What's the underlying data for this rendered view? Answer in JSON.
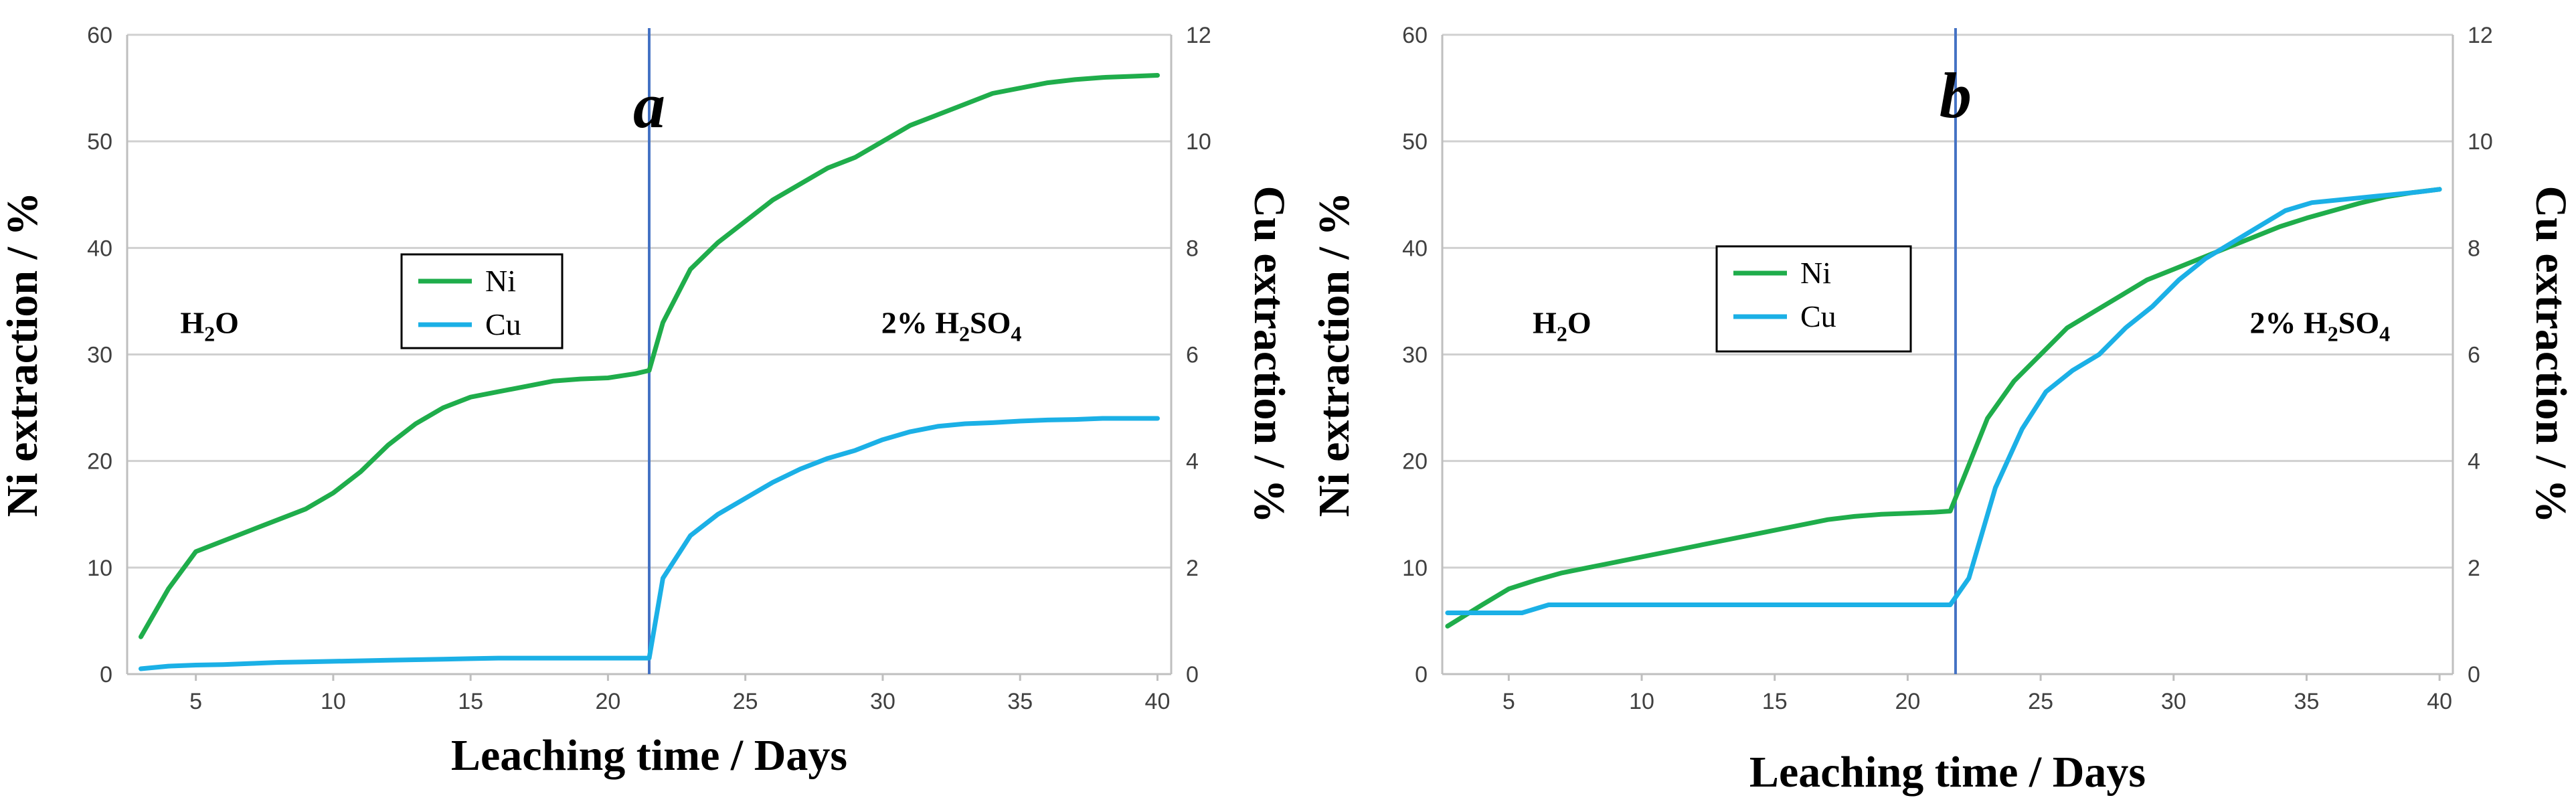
{
  "chart_data": [
    {
      "type": "line",
      "panel_label": "a",
      "xlabel": "Leaching time / Days",
      "ylabel": "Ni extraction / %",
      "y2label": "Cu extraction / %",
      "xlim": [
        2.5,
        40.5
      ],
      "ylim": [
        0,
        60
      ],
      "y2lim": [
        0,
        12
      ],
      "xticks": [
        5,
        10,
        15,
        20,
        25,
        30,
        35,
        40
      ],
      "yticks": [
        0,
        10,
        20,
        30,
        40,
        50,
        60
      ],
      "y2ticks": [
        0,
        2,
        4,
        6,
        8,
        10,
        12
      ],
      "grid": true,
      "legend": [
        "Ni",
        "Cu"
      ],
      "divider_x": 21.5,
      "regions": [
        {
          "label_main": "H",
          "label_sub": "2",
          "label_tail": "O",
          "sub2": "",
          "x": 5.5,
          "y": 32
        },
        {
          "label_main": "2% H",
          "label_sub": "2",
          "label_tail": "SO",
          "sub2": "4",
          "x": 32.5,
          "y": 32
        }
      ],
      "series": [
        {
          "name": "Ni",
          "color": "#1fad4b",
          "axis": "left",
          "x": [
            3,
            4,
            5,
            6,
            7,
            8,
            9,
            10,
            11,
            12,
            13,
            14,
            15,
            16,
            17,
            18,
            19,
            20,
            21,
            21.5,
            22,
            23,
            24,
            25,
            26,
            27,
            28,
            29,
            30,
            31,
            32,
            33,
            34,
            35,
            36,
            37,
            38,
            39,
            40
          ],
          "y": [
            3.5,
            8,
            11.5,
            12.5,
            13.5,
            14.5,
            15.5,
            17,
            19,
            21.5,
            23.5,
            25,
            26,
            26.5,
            27,
            27.5,
            27.7,
            27.8,
            28.2,
            28.5,
            33,
            38,
            40.5,
            42.5,
            44.5,
            46,
            47.5,
            48.5,
            50,
            51.5,
            52.5,
            53.5,
            54.5,
            55,
            55.5,
            55.8,
            56,
            56.1,
            56.2
          ]
        },
        {
          "name": "Cu",
          "color": "#1bb0e6",
          "axis": "right",
          "x": [
            3,
            4,
            5,
            6,
            7,
            8,
            9,
            10,
            11,
            12,
            13,
            14,
            15,
            16,
            17,
            18,
            19,
            20,
            21,
            21.5,
            22,
            23,
            24,
            25,
            26,
            27,
            28,
            29,
            30,
            31,
            32,
            33,
            34,
            35,
            36,
            37,
            38,
            39,
            40
          ],
          "y": [
            0.1,
            0.15,
            0.17,
            0.18,
            0.2,
            0.22,
            0.23,
            0.24,
            0.25,
            0.26,
            0.27,
            0.28,
            0.29,
            0.3,
            0.3,
            0.3,
            0.3,
            0.3,
            0.3,
            0.3,
            1.8,
            2.6,
            3.0,
            3.3,
            3.6,
            3.85,
            4.05,
            4.2,
            4.4,
            4.55,
            4.65,
            4.7,
            4.72,
            4.75,
            4.77,
            4.78,
            4.8,
            4.8,
            4.8
          ]
        }
      ]
    },
    {
      "type": "line",
      "panel_label": "b",
      "xlabel": "Leaching time / Days",
      "ylabel": "Ni extraction / %",
      "y2label": "Cu extraction / %",
      "xlim": [
        2.5,
        40.5
      ],
      "ylim": [
        0,
        60
      ],
      "y2lim": [
        0,
        12
      ],
      "xticks": [
        5,
        10,
        15,
        20,
        25,
        30,
        35,
        40
      ],
      "yticks": [
        0,
        10,
        20,
        30,
        40,
        50,
        60
      ],
      "y2ticks": [
        0,
        2,
        4,
        6,
        8,
        10,
        12
      ],
      "grid": true,
      "legend": [
        "Ni",
        "Cu"
      ],
      "divider_x": 21.8,
      "regions": [
        {
          "label_main": "H",
          "label_sub": "2",
          "label_tail": "O",
          "sub2": "",
          "x": 7,
          "y": 32
        },
        {
          "label_main": "2% H",
          "label_sub": "2",
          "label_tail": "SO",
          "sub2": "4",
          "x": 35.5,
          "y": 32
        }
      ],
      "series": [
        {
          "name": "Ni",
          "color": "#1fad4b",
          "axis": "left",
          "x": [
            2.7,
            4,
            5,
            6,
            7,
            8,
            9,
            10,
            11,
            12,
            13,
            14,
            15,
            16,
            17,
            18,
            19,
            20,
            21,
            21.6,
            22.2,
            23,
            24,
            25,
            26,
            27,
            28,
            29,
            30,
            31,
            32,
            33,
            34,
            35,
            36,
            37,
            38,
            39,
            40
          ],
          "y": [
            4.5,
            6.5,
            8,
            8.8,
            9.5,
            10,
            10.5,
            11,
            11.5,
            12,
            12.5,
            13,
            13.5,
            14,
            14.5,
            14.8,
            15,
            15.1,
            15.2,
            15.3,
            19,
            24,
            27.5,
            30,
            32.5,
            34,
            35.5,
            37,
            38,
            39,
            40,
            41,
            42,
            42.8,
            43.5,
            44.2,
            44.8,
            45.2,
            45.5
          ]
        },
        {
          "name": "Cu",
          "color": "#1bb0e6",
          "axis": "right",
          "x": [
            2.7,
            4,
            5.5,
            6.5,
            7,
            8,
            9,
            10,
            11,
            12,
            13,
            14,
            15,
            16,
            17,
            18,
            19,
            20,
            21,
            21.6,
            22.3,
            23.3,
            24.3,
            25.2,
            26.2,
            27.2,
            28.2,
            29.2,
            30.2,
            31.2,
            32.2,
            33.2,
            34.2,
            35.2,
            36.2,
            37.2,
            38.2,
            39.2,
            40
          ],
          "y": [
            1.15,
            1.15,
            1.15,
            1.3,
            1.3,
            1.3,
            1.3,
            1.3,
            1.3,
            1.3,
            1.3,
            1.3,
            1.3,
            1.3,
            1.3,
            1.3,
            1.3,
            1.3,
            1.3,
            1.3,
            1.8,
            3.5,
            4.6,
            5.3,
            5.7,
            6.0,
            6.5,
            6.9,
            7.4,
            7.8,
            8.1,
            8.4,
            8.7,
            8.85,
            8.9,
            8.95,
            9.0,
            9.05,
            9.1
          ]
        }
      ]
    }
  ]
}
